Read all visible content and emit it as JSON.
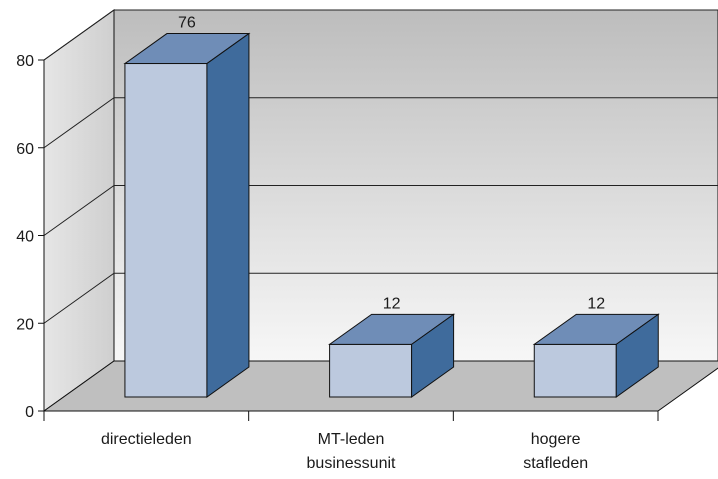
{
  "chart_data": {
    "type": "bar",
    "title": "",
    "xlabel": "",
    "ylabel": "",
    "categories": [
      [
        "directieleden"
      ],
      [
        "MT-leden",
        "businessunit"
      ],
      [
        "hogere",
        "stafleden"
      ]
    ],
    "values": [
      76,
      12,
      12
    ],
    "data_labels": [
      "76",
      "12",
      "12"
    ],
    "ylim": [
      0,
      80
    ],
    "yticks": [
      "0",
      "20",
      "40",
      "60",
      "80"
    ],
    "grid": true,
    "legend": "none",
    "three_d": true,
    "colors": {
      "bar_front": "#bcc9de",
      "bar_top": "#6f8db7",
      "bar_side": "#3f6b9c",
      "back_wall_top": "#bdbdbd",
      "back_wall_bottom": "#f7f7f7",
      "floor": "#bfbfbf"
    }
  }
}
